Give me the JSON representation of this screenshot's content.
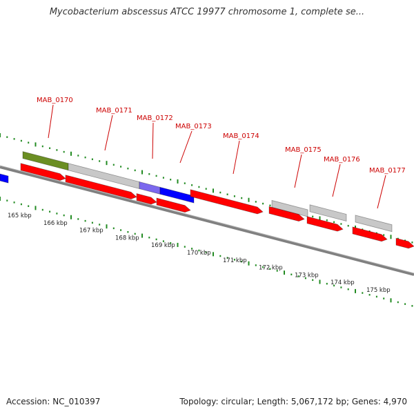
{
  "title": "Mycobacterium abscessus ATCC 19977 chromosome 1, complete se...",
  "footer": {
    "accession": "Accession: NC_010397",
    "summary": "Topology: circular; Length: 5,067,172 bp; Genes: 4,970"
  },
  "colors": {
    "gene_red": "#ff0000",
    "gene_blue": "#0000ff",
    "gene_gray": "#c8c8c8",
    "gene_olive": "#6b8e23",
    "gene_purple": "#7b68ee",
    "label_red": "#cc0000",
    "tick_green": "#228b22",
    "backbone": "#808080"
  },
  "genes": [
    {
      "id": "MAB_0170"
    },
    {
      "id": "MAB_0171"
    },
    {
      "id": "MAB_0172"
    },
    {
      "id": "MAB_0173"
    },
    {
      "id": "MAB_0174"
    },
    {
      "id": "MAB_0175"
    },
    {
      "id": "MAB_0176"
    },
    {
      "id": "MAB_0177"
    }
  ],
  "scale_labels": [
    "165 kbp",
    "166 kbp",
    "167 kbp",
    "168 kbp",
    "169 kbp",
    "170 kbp",
    "171 kbp",
    "172 kbp",
    "173 kbp",
    "174 kbp",
    "175 kbp"
  ]
}
